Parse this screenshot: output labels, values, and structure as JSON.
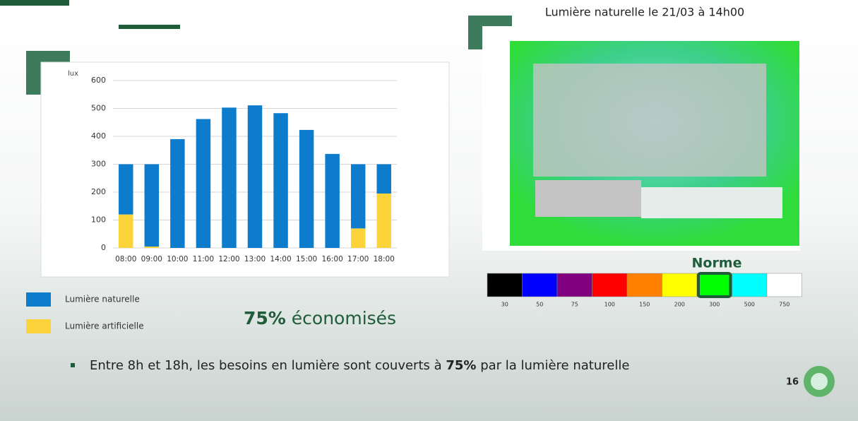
{
  "chart_data": {
    "type": "stacked-bar",
    "y_label": "lux",
    "categories": [
      "08:00",
      "09:00",
      "10:00",
      "11:00",
      "12:00",
      "13:00",
      "14:00",
      "15:00",
      "16:00",
      "17:00",
      "18:00"
    ],
    "series": [
      {
        "name": "Lumière naturelle",
        "color": "#0e7ccc",
        "values": [
          180,
          295,
          390,
          462,
          503,
          511,
          483,
          423,
          337,
          230,
          105
        ]
      },
      {
        "name": "Lumière artificielle",
        "color": "#fdd33b",
        "values": [
          120,
          5,
          0,
          0,
          0,
          0,
          0,
          0,
          0,
          70,
          195
        ]
      }
    ],
    "ylim": [
      0,
      600
    ],
    "yticks": [
      0,
      100,
      200,
      300,
      400,
      500,
      600
    ],
    "grid": true
  },
  "simulation": {
    "title": "Lumière naturelle le 21/03 à 14h00",
    "norm_label": "Norme",
    "scale": {
      "labels": [
        30,
        50,
        75,
        100,
        150,
        200,
        300,
        500,
        750
      ],
      "colors": [
        "#000000",
        "#0000ff",
        "#800080",
        "#ff0000",
        "#ff8000",
        "#ffff00",
        "#00ff00",
        "#00ffff",
        "#ffffff"
      ]
    }
  },
  "slide": {
    "headline": [
      "75%",
      " économisés"
    ],
    "bullet": [
      "Entre 8h et 18h, les besoins en lumière sont couverts à ",
      "75%",
      " par la lumière naturelle"
    ],
    "page_number": "16"
  }
}
